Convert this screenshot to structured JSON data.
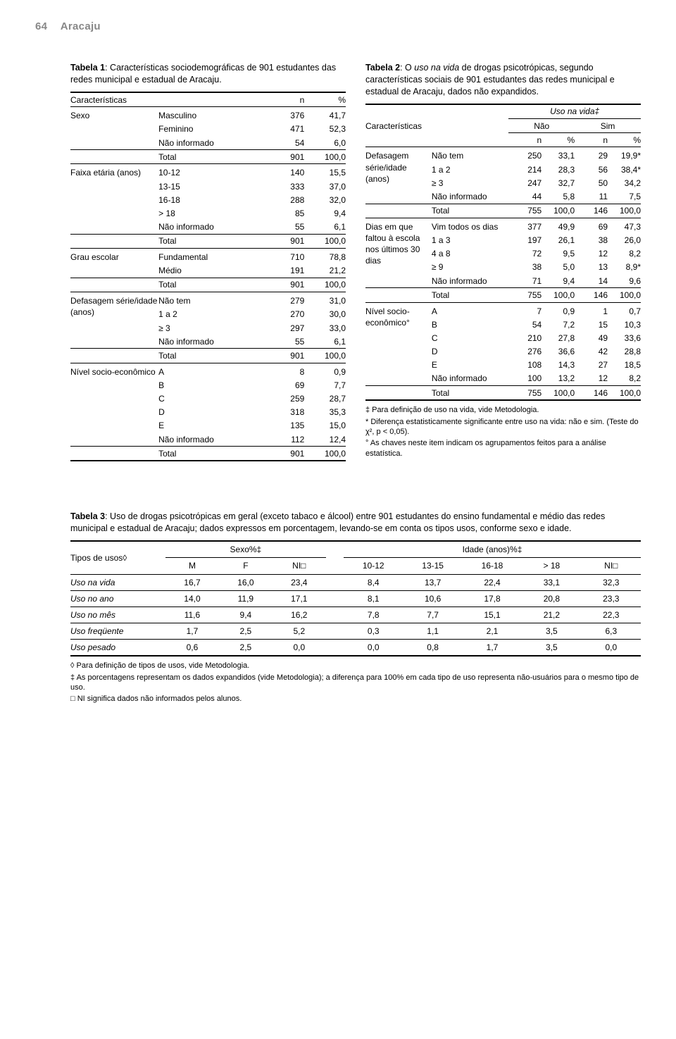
{
  "header": {
    "page_number": "64",
    "location": "Aracaju"
  },
  "table1": {
    "caption_label": "Tabela 1",
    "caption_text": ": Características sociodemográficas de 901 estudantes das redes municipal e estadual de Aracaju.",
    "head": {
      "c1": "Características",
      "n": "n",
      "pct": "%"
    },
    "sections": [
      {
        "group": "Sexo",
        "rows": [
          [
            "Masculino",
            "376",
            "41,7"
          ],
          [
            "Feminino",
            "471",
            "52,3"
          ],
          [
            "Não informado",
            "54",
            "6,0"
          ]
        ],
        "total": [
          "Total",
          "901",
          "100,0"
        ]
      },
      {
        "group": "Faixa etária (anos)",
        "rows": [
          [
            "10-12",
            "140",
            "15,5"
          ],
          [
            "13-15",
            "333",
            "37,0"
          ],
          [
            "16-18",
            "288",
            "32,0"
          ],
          [
            "> 18",
            "85",
            "9,4"
          ],
          [
            "Não informado",
            "55",
            "6,1"
          ]
        ],
        "total": [
          "Total",
          "901",
          "100,0"
        ]
      },
      {
        "group": "Grau escolar",
        "rows": [
          [
            "Fundamental",
            "710",
            "78,8"
          ],
          [
            "Médio",
            "191",
            "21,2"
          ]
        ],
        "total": [
          "Total",
          "901",
          "100,0"
        ]
      },
      {
        "group": "Defasagem série/idade (anos)",
        "rows": [
          [
            "Não tem",
            "279",
            "31,0"
          ],
          [
            "1 a 2",
            "270",
            "30,0"
          ],
          [
            "≥ 3",
            "297",
            "33,0"
          ],
          [
            "Não informado",
            "55",
            "6,1"
          ]
        ],
        "total": [
          "Total",
          "901",
          "100,0"
        ]
      },
      {
        "group": "Nível socio-econômico",
        "rows": [
          [
            "A",
            "8",
            "0,9"
          ],
          [
            "B",
            "69",
            "7,7"
          ],
          [
            "C",
            "259",
            "28,7"
          ],
          [
            "D",
            "318",
            "35,3"
          ],
          [
            "E",
            "135",
            "15,0"
          ],
          [
            "Não informado",
            "112",
            "12,4"
          ]
        ],
        "total": [
          "Total",
          "901",
          "100,0"
        ]
      }
    ]
  },
  "table2": {
    "caption_label": "Tabela 2",
    "caption_pre": ": O ",
    "caption_italic": "uso na vida",
    "caption_post": " de drogas psicotrópicas, segundo características sociais de 901 estudantes das redes municipal e estadual de Aracaju, dados não expandidos.",
    "head": {
      "c1": "Características",
      "top": "Uso na vida‡",
      "nao": "Não",
      "sim": "Sim",
      "n": "n",
      "pct": "%"
    },
    "sections": [
      {
        "group": "Defasagem série/idade (anos)",
        "rows": [
          [
            "Não tem",
            "250",
            "33,1",
            "29",
            "19,9*"
          ],
          [
            "1 a 2",
            "214",
            "28,3",
            "56",
            "38,4*"
          ],
          [
            "≥ 3",
            "247",
            "32,7",
            "50",
            "34,2"
          ],
          [
            "Não informado",
            "44",
            "5,8",
            "11",
            "7,5"
          ]
        ],
        "total": [
          "Total",
          "755",
          "100,0",
          "146",
          "100,0"
        ]
      },
      {
        "group": "Dias em que faltou à escola nos últimos 30 dias",
        "rows": [
          [
            "Vim todos os dias",
            "377",
            "49,9",
            "69",
            "47,3"
          ],
          [
            "1 a 3",
            "197",
            "26,1",
            "38",
            "26,0"
          ],
          [
            "4 a 8",
            "72",
            "9,5",
            "12",
            "8,2"
          ],
          [
            "≥ 9",
            "38",
            "5,0",
            "13",
            "8,9*"
          ],
          [
            "Não informado",
            "71",
            "9,4",
            "14",
            "9,6"
          ]
        ],
        "total": [
          "Total",
          "755",
          "100,0",
          "146",
          "100,0"
        ]
      },
      {
        "group": "Nível socio-econômico°",
        "rows": [
          [
            "A",
            "7",
            "0,9",
            "1",
            "0,7"
          ],
          [
            "B",
            "54",
            "7,2",
            "15",
            "10,3"
          ],
          [
            "C",
            "210",
            "27,8",
            "49",
            "33,6"
          ],
          [
            "D",
            "276",
            "36,6",
            "42",
            "28,8"
          ],
          [
            "E",
            "108",
            "14,3",
            "27",
            "18,5"
          ],
          [
            "Não informado",
            "100",
            "13,2",
            "12",
            "8,2"
          ]
        ],
        "total": [
          "Total",
          "755",
          "100,0",
          "146",
          "100,0"
        ]
      }
    ],
    "footnotes": [
      "‡ Para definição de uso na vida, vide Metodologia.",
      "* Diferença estatisticamente significante entre uso na vida: não e sim. (Teste do χ², p < 0,05).",
      "° As chaves neste item indicam os agrupamentos feitos para a análise estatística."
    ]
  },
  "table3": {
    "caption_label": "Tabela 3",
    "caption_text": ": Uso de drogas psicotrópicas em geral (exceto tabaco e álcool) entre 901 estudantes do ensino fundamental e médio das redes municipal e estadual de Aracaju; dados expressos em porcentagem, levando-se em conta os tipos usos, conforme sexo e idade.",
    "head": {
      "rowlabel": "Tipos de usos◊",
      "sexo": "Sexo%‡",
      "idade": "Idade (anos)%‡",
      "cols": [
        "M",
        "F",
        "NI□",
        "10-12",
        "13-15",
        "16-18",
        "> 18",
        "NI□"
      ]
    },
    "rows": [
      [
        "Uso na vida",
        "16,7",
        "16,0",
        "23,4",
        "8,4",
        "13,7",
        "22,4",
        "33,1",
        "32,3"
      ],
      [
        "Uso no ano",
        "14,0",
        "11,9",
        "17,1",
        "8,1",
        "10,6",
        "17,8",
        "20,8",
        "23,3"
      ],
      [
        "Uso no mês",
        "11,6",
        "9,4",
        "16,2",
        "7,8",
        "7,7",
        "15,1",
        "21,2",
        "22,3"
      ],
      [
        "Uso freqüente",
        "1,7",
        "2,5",
        "5,2",
        "0,3",
        "1,1",
        "2,1",
        "3,5",
        "6,3"
      ],
      [
        "Uso pesado",
        "0,6",
        "2,5",
        "0,0",
        "0,0",
        "0,8",
        "1,7",
        "3,5",
        "0,0"
      ]
    ],
    "footnotes": [
      "◊ Para definição de tipos de usos, vide Metodologia.",
      "‡ As porcentagens representam os dados expandidos (vide Metodologia); a diferença para 100% em cada tipo de uso representa não-usuários para o mesmo tipo de uso.",
      "□ NI significa dados não informados pelos alunos."
    ]
  }
}
